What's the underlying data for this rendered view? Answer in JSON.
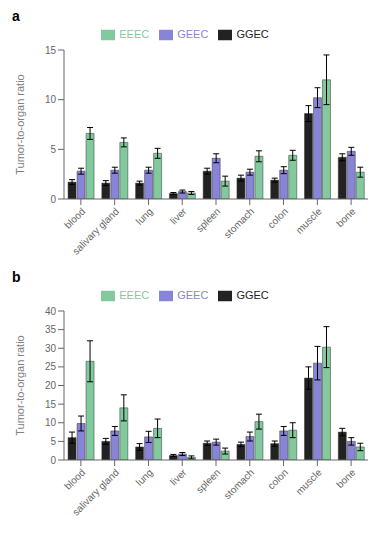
{
  "chart_data": [
    {
      "type": "bar",
      "title": "a",
      "categories": [
        "blood",
        "salivary gland",
        "lung",
        "liver",
        "spleen",
        "stomach",
        "colon",
        "muscle",
        "bone"
      ],
      "ylabel": "Tumor-to-organ ratio",
      "ylim": [
        0,
        15
      ],
      "yticks": [
        0,
        5,
        10,
        15
      ],
      "legend": "top",
      "series": [
        {
          "name": "GGEC",
          "color": "#222222",
          "values": [
            1.7,
            1.6,
            1.6,
            0.55,
            2.8,
            2.1,
            1.9,
            8.6,
            4.2
          ],
          "errors": [
            0.25,
            0.25,
            0.2,
            0.1,
            0.3,
            0.3,
            0.2,
            0.8,
            0.35
          ]
        },
        {
          "name": "GEEC",
          "color": "#8884d8",
          "values": [
            2.8,
            2.9,
            2.9,
            0.75,
            4.1,
            2.7,
            2.9,
            10.2,
            4.8
          ],
          "errors": [
            0.3,
            0.3,
            0.3,
            0.15,
            0.45,
            0.3,
            0.35,
            1.0,
            0.4
          ]
        },
        {
          "name": "EEEC",
          "color": "#82ca9d",
          "values": [
            6.6,
            5.7,
            4.6,
            0.6,
            1.8,
            4.3,
            4.4,
            12.0,
            2.7
          ],
          "errors": [
            0.6,
            0.45,
            0.5,
            0.15,
            0.5,
            0.55,
            0.5,
            2.5,
            0.5
          ]
        }
      ]
    },
    {
      "type": "bar",
      "title": "b",
      "categories": [
        "blood",
        "salivary gland",
        "lung",
        "liver",
        "spleen",
        "stomach",
        "colon",
        "muscle",
        "bone"
      ],
      "ylabel": "Tumor-to-organ ratio",
      "ylim": [
        0,
        40
      ],
      "yticks": [
        0,
        5,
        10,
        15,
        20,
        25,
        30,
        35,
        40
      ],
      "legend": "top",
      "series": [
        {
          "name": "GGEC",
          "color": "#222222",
          "values": [
            6.0,
            5.0,
            3.5,
            1.2,
            4.5,
            4.2,
            4.4,
            22.0,
            7.5
          ],
          "errors": [
            1.5,
            0.8,
            0.9,
            0.3,
            0.6,
            0.6,
            0.7,
            3.0,
            1.0
          ]
        },
        {
          "name": "GEEC",
          "color": "#8884d8",
          "values": [
            9.8,
            7.8,
            6.2,
            1.6,
            4.8,
            6.3,
            7.8,
            26.0,
            5.0
          ],
          "errors": [
            2.0,
            1.2,
            1.5,
            0.4,
            0.8,
            1.2,
            1.2,
            4.5,
            1.0
          ]
        },
        {
          "name": "EEEC",
          "color": "#82ca9d",
          "values": [
            26.5,
            14.0,
            8.5,
            0.7,
            2.4,
            10.3,
            8.0,
            30.3,
            3.5
          ],
          "errors": [
            5.5,
            3.5,
            2.5,
            0.4,
            0.8,
            2.0,
            2.0,
            5.5,
            1.0
          ]
        }
      ]
    }
  ]
}
